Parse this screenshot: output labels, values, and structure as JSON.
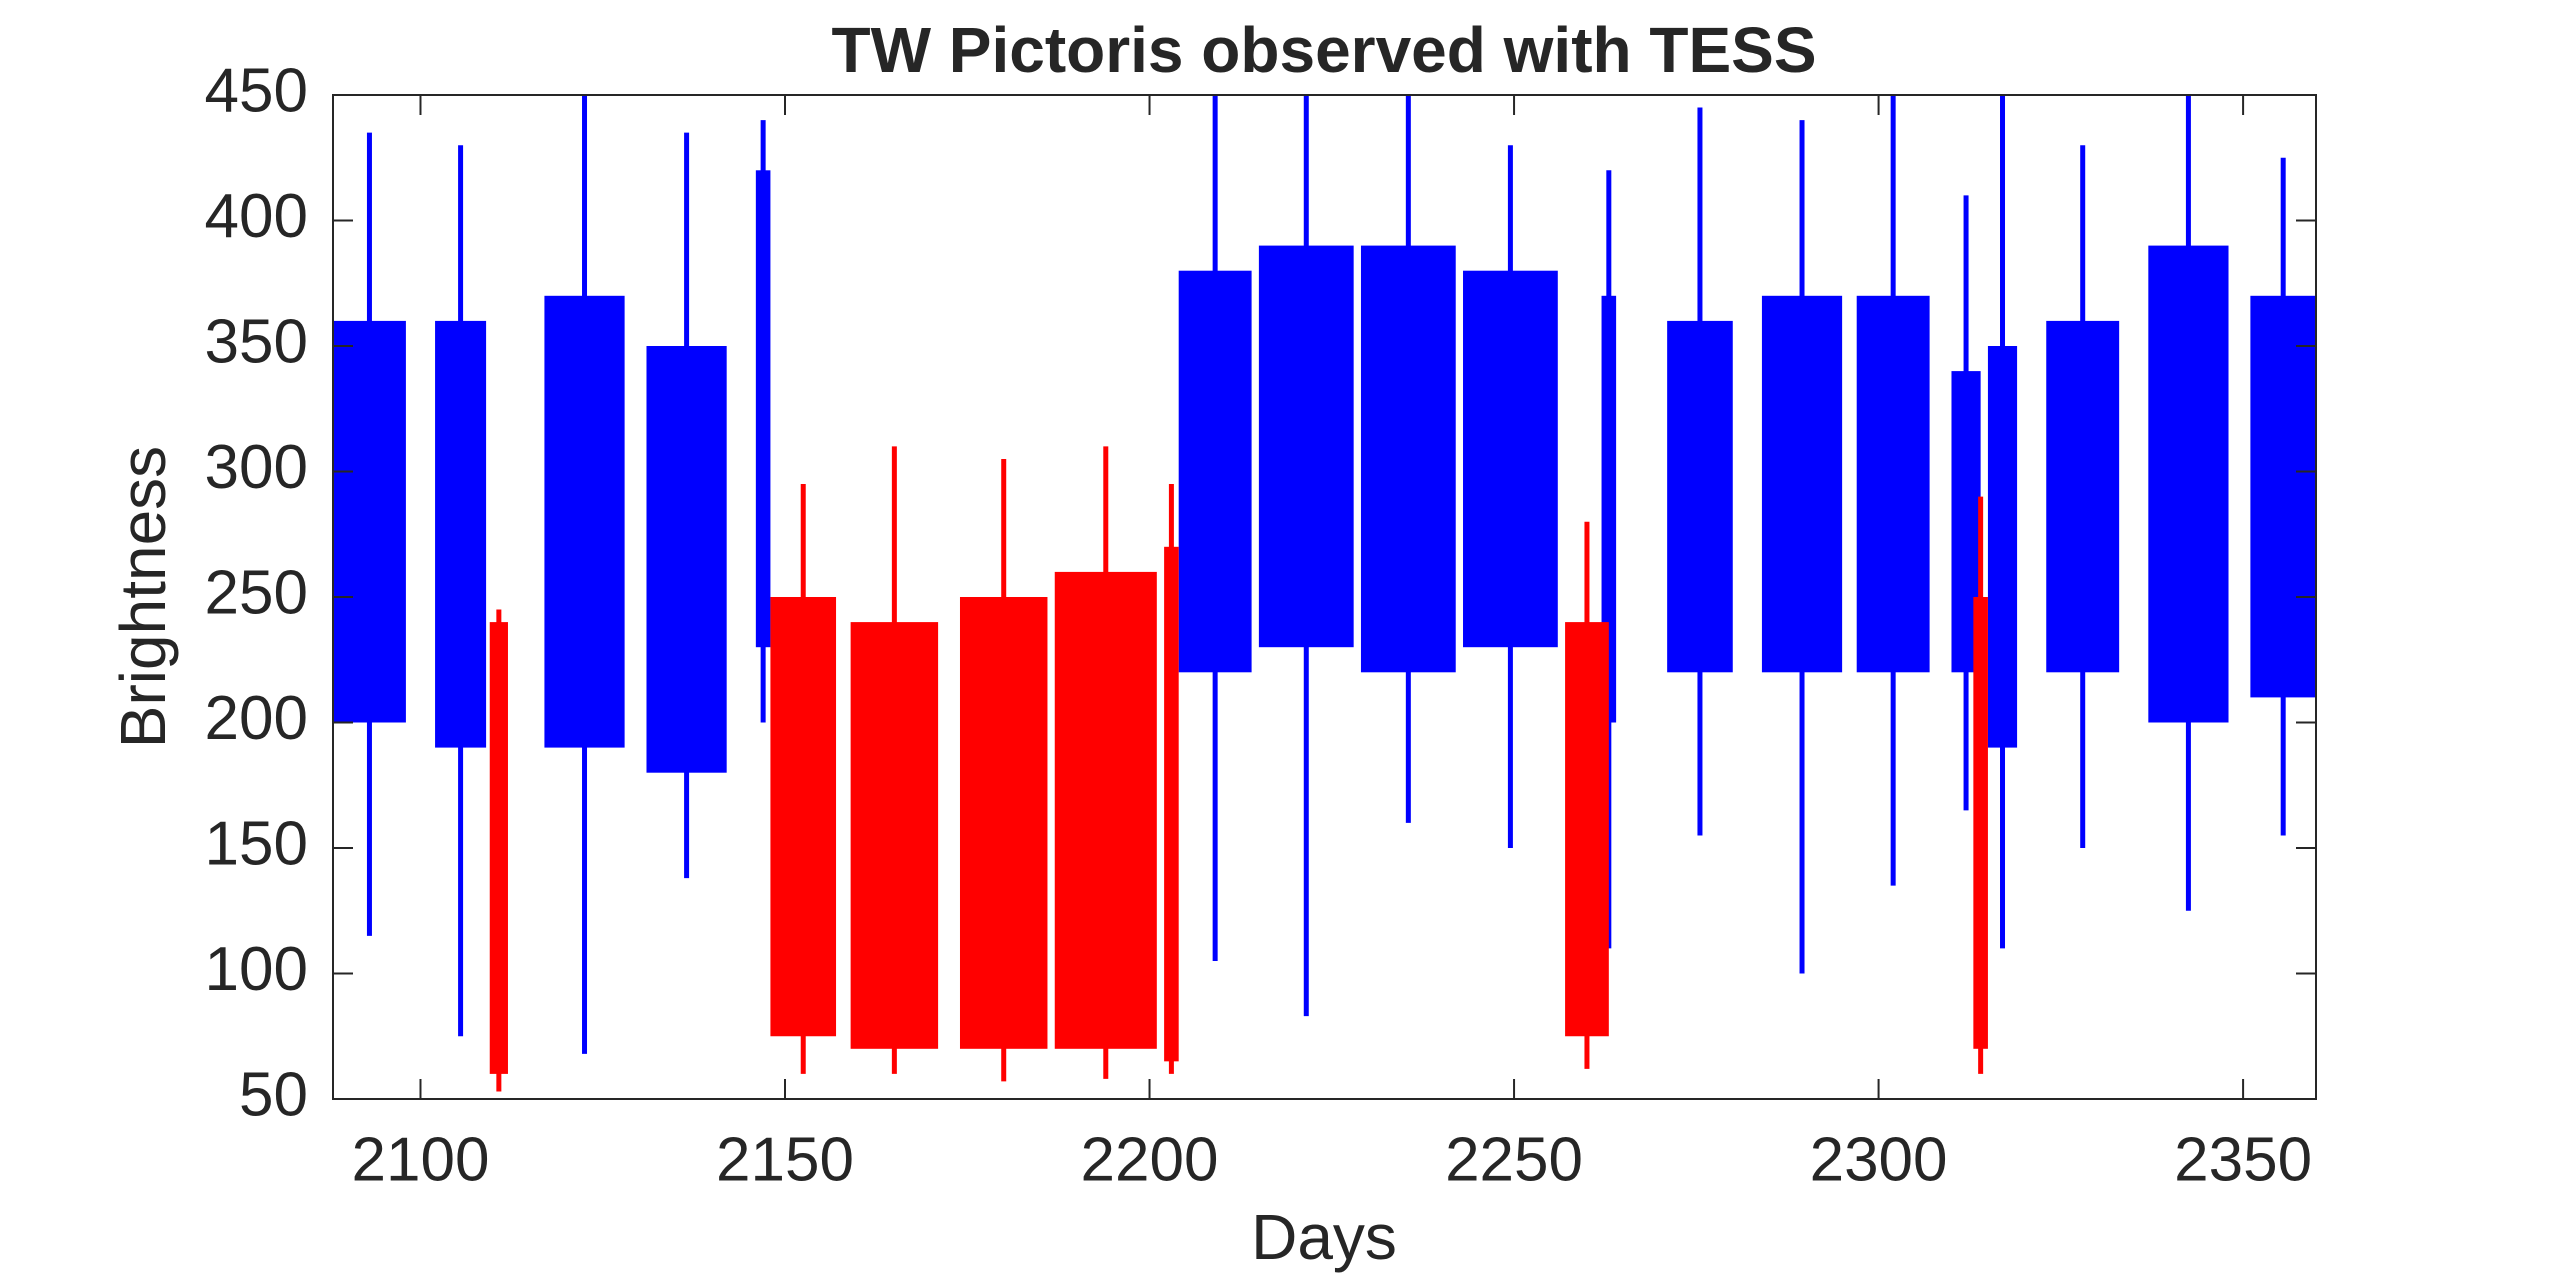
{
  "chart_data": {
    "type": "range",
    "title": "TW Pictoris observed with TESS",
    "x_label": "Days",
    "y_label": "Brightness",
    "xlim": [
      2088,
      2360
    ],
    "ylim": [
      50,
      450
    ],
    "xticks": [
      2100,
      2150,
      2200,
      2250,
      2300,
      2350
    ],
    "yticks": [
      50,
      100,
      150,
      200,
      250,
      300,
      350,
      400,
      450
    ],
    "series": [
      {
        "color": "#0000ff",
        "x_start": [
          2088,
          2102,
          2117,
          2131,
          2146,
          2204,
          2215,
          2229,
          2243,
          2262,
          2271,
          2284,
          2297,
          2310,
          2315,
          2323,
          2337,
          2351
        ],
        "x_end": [
          2098,
          2109,
          2128,
          2142,
          2148,
          2214,
          2228,
          2242,
          2256,
          2264,
          2280,
          2295,
          2307,
          2314,
          2319,
          2333,
          2348,
          2360
        ],
        "low": [
          200,
          190,
          190,
          180,
          230,
          220,
          230,
          220,
          230,
          200,
          220,
          220,
          220,
          220,
          190,
          220,
          200,
          210
        ],
        "high": [
          360,
          360,
          370,
          350,
          420,
          380,
          390,
          390,
          380,
          370,
          360,
          370,
          370,
          340,
          350,
          360,
          390,
          370
        ],
        "min": [
          115,
          75,
          68,
          138,
          200,
          105,
          83,
          160,
          150,
          110,
          155,
          100,
          135,
          165,
          110,
          150,
          125,
          155
        ],
        "max": [
          435,
          430,
          450,
          435,
          440,
          450,
          450,
          450,
          430,
          420,
          445,
          440,
          450,
          410,
          450,
          430,
          450,
          425
        ]
      },
      {
        "color": "#ff0000",
        "x_start": [
          2109.5,
          2148,
          2159,
          2174,
          2187,
          2202,
          2257,
          2313
        ],
        "x_end": [
          2112,
          2157,
          2171,
          2186,
          2201,
          2204,
          2263,
          2315
        ],
        "low": [
          60,
          75,
          70,
          70,
          70,
          65,
          75,
          70
        ],
        "high": [
          240,
          250,
          240,
          250,
          260,
          270,
          240,
          250
        ],
        "min": [
          53,
          60,
          60,
          57,
          58,
          60,
          62,
          60
        ],
        "max": [
          245,
          295,
          310,
          305,
          310,
          295,
          280,
          290
        ]
      }
    ]
  }
}
